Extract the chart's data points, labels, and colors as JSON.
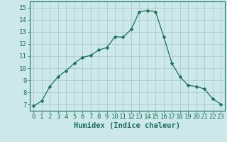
{
  "x": [
    0,
    1,
    2,
    3,
    4,
    5,
    6,
    7,
    8,
    9,
    10,
    11,
    12,
    13,
    14,
    15,
    16,
    17,
    18,
    19,
    20,
    21,
    22,
    23
  ],
  "y": [
    6.9,
    7.3,
    8.5,
    9.3,
    9.8,
    10.4,
    10.9,
    11.05,
    11.5,
    11.7,
    12.6,
    12.55,
    13.2,
    14.65,
    14.75,
    14.65,
    12.6,
    10.4,
    9.3,
    8.6,
    8.5,
    8.3,
    7.5,
    7.05
  ],
  "line_color": "#1a7060",
  "marker": "D",
  "marker_size": 2.5,
  "bg_color": "#cce8e8",
  "grid_color": "#aacccc",
  "xlabel": "Humidex (Indice chaleur)",
  "xlim": [
    -0.5,
    23.5
  ],
  "ylim": [
    6.5,
    15.5
  ],
  "yticks": [
    7,
    8,
    9,
    10,
    11,
    12,
    13,
    14,
    15
  ],
  "xticks": [
    0,
    1,
    2,
    3,
    4,
    5,
    6,
    7,
    8,
    9,
    10,
    11,
    12,
    13,
    14,
    15,
    16,
    17,
    18,
    19,
    20,
    21,
    22,
    23
  ],
  "tick_color": "#1a7060",
  "label_color": "#1a7060",
  "font_size": 6.5,
  "xlabel_fontsize": 7.5
}
